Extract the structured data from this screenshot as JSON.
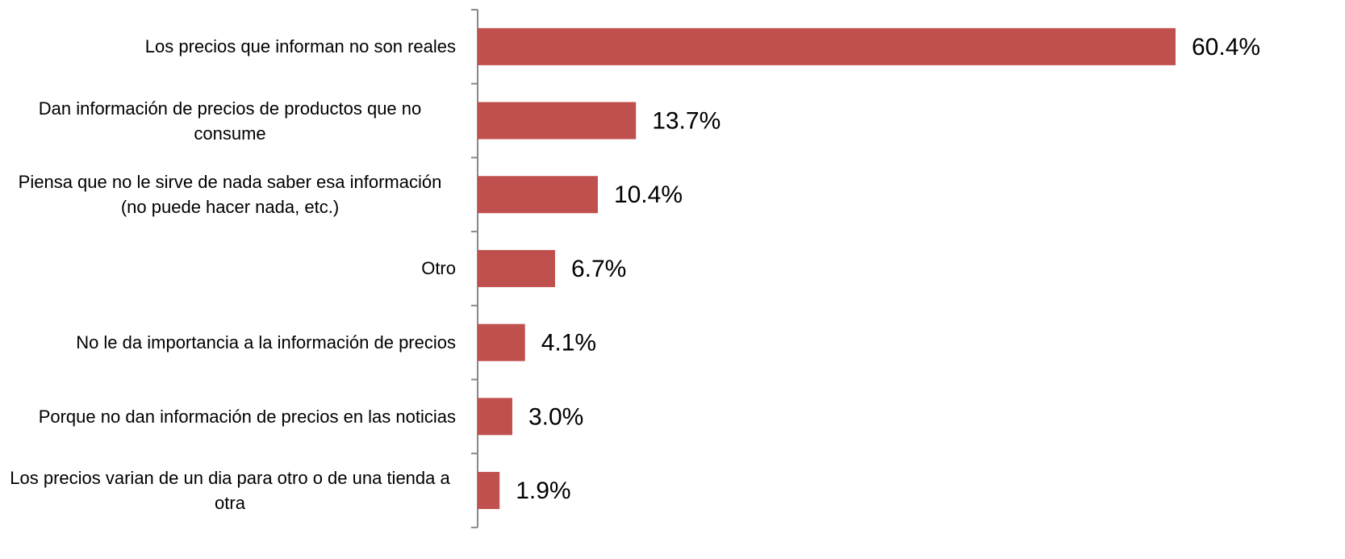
{
  "chart_data": {
    "type": "bar",
    "orientation": "horizontal",
    "categories": [
      "Los precios que informan no son reales",
      "Dan información de precios de productos que no consume",
      "Piensa que no le sirve de nada saber esa información (no puede hacer nada, etc.)",
      "Otro",
      "No le da importancia a la información de precios",
      "Porque no dan información de precios en las noticias",
      "Los precios varian de un dia para otro o de una tienda a otra"
    ],
    "values": [
      60.4,
      13.7,
      10.4,
      6.7,
      4.1,
      3.0,
      1.9
    ],
    "value_labels": [
      "60.4%",
      "13.7%",
      "10.4%",
      "6.7%",
      "4.1%",
      "3.0%",
      "1.9%"
    ],
    "color": "#c0504d"
  }
}
